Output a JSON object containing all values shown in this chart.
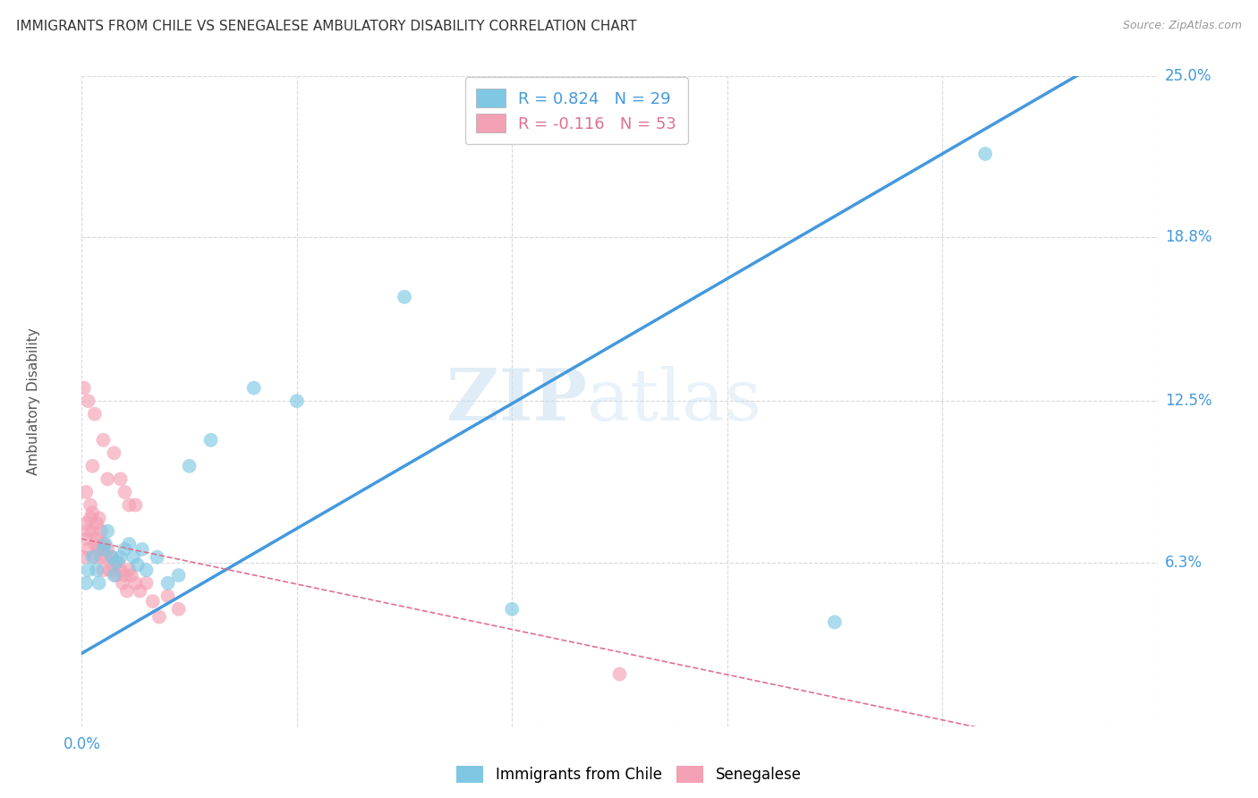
{
  "title": "IMMIGRANTS FROM CHILE VS SENEGALESE AMBULATORY DISABILITY CORRELATION CHART",
  "source": "Source: ZipAtlas.com",
  "ylabel": "Ambulatory Disability",
  "xlim": [
    0.0,
    0.5
  ],
  "ylim": [
    0.0,
    0.25
  ],
  "legend_color1": "#7ec8e3",
  "legend_color2": "#f4a0b5",
  "color_chile": "#7ec8e3",
  "color_senegal": "#f4a0b5",
  "line_color_chile": "#4499dd",
  "line_color_senegal": "#e07090",
  "background_color": "#ffffff",
  "grid_color": "#d8d8d8",
  "chile_x": [
    0.002,
    0.003,
    0.005,
    0.007,
    0.008,
    0.01,
    0.011,
    0.012,
    0.014,
    0.015,
    0.016,
    0.018,
    0.02,
    0.022,
    0.024,
    0.026,
    0.028,
    0.03,
    0.035,
    0.04,
    0.045,
    0.05,
    0.06,
    0.08,
    0.1,
    0.15,
    0.2,
    0.35,
    0.42
  ],
  "chile_y": [
    0.055,
    0.06,
    0.065,
    0.06,
    0.055,
    0.068,
    0.07,
    0.075,
    0.065,
    0.058,
    0.063,
    0.065,
    0.068,
    0.07,
    0.065,
    0.062,
    0.068,
    0.06,
    0.065,
    0.055,
    0.058,
    0.1,
    0.11,
    0.13,
    0.125,
    0.165,
    0.045,
    0.04,
    0.22
  ],
  "senegal_x": [
    0.001,
    0.002,
    0.002,
    0.003,
    0.003,
    0.004,
    0.004,
    0.005,
    0.005,
    0.006,
    0.006,
    0.007,
    0.007,
    0.008,
    0.008,
    0.009,
    0.009,
    0.01,
    0.01,
    0.011,
    0.012,
    0.013,
    0.014,
    0.015,
    0.016,
    0.017,
    0.018,
    0.019,
    0.02,
    0.021,
    0.022,
    0.023,
    0.025,
    0.027,
    0.03,
    0.033,
    0.036,
    0.04,
    0.045,
    0.002,
    0.005,
    0.01,
    0.012,
    0.015,
    0.018,
    0.02,
    0.022,
    0.025,
    0.001,
    0.003,
    0.006,
    0.25
  ],
  "senegal_y": [
    0.065,
    0.072,
    0.078,
    0.075,
    0.068,
    0.08,
    0.085,
    0.075,
    0.082,
    0.07,
    0.065,
    0.078,
    0.072,
    0.08,
    0.068,
    0.075,
    0.065,
    0.07,
    0.06,
    0.065,
    0.068,
    0.06,
    0.065,
    0.062,
    0.058,
    0.063,
    0.06,
    0.055,
    0.058,
    0.052,
    0.06,
    0.058,
    0.055,
    0.052,
    0.055,
    0.048,
    0.042,
    0.05,
    0.045,
    0.09,
    0.1,
    0.11,
    0.095,
    0.105,
    0.095,
    0.09,
    0.085,
    0.085,
    0.13,
    0.125,
    0.12,
    0.02
  ]
}
